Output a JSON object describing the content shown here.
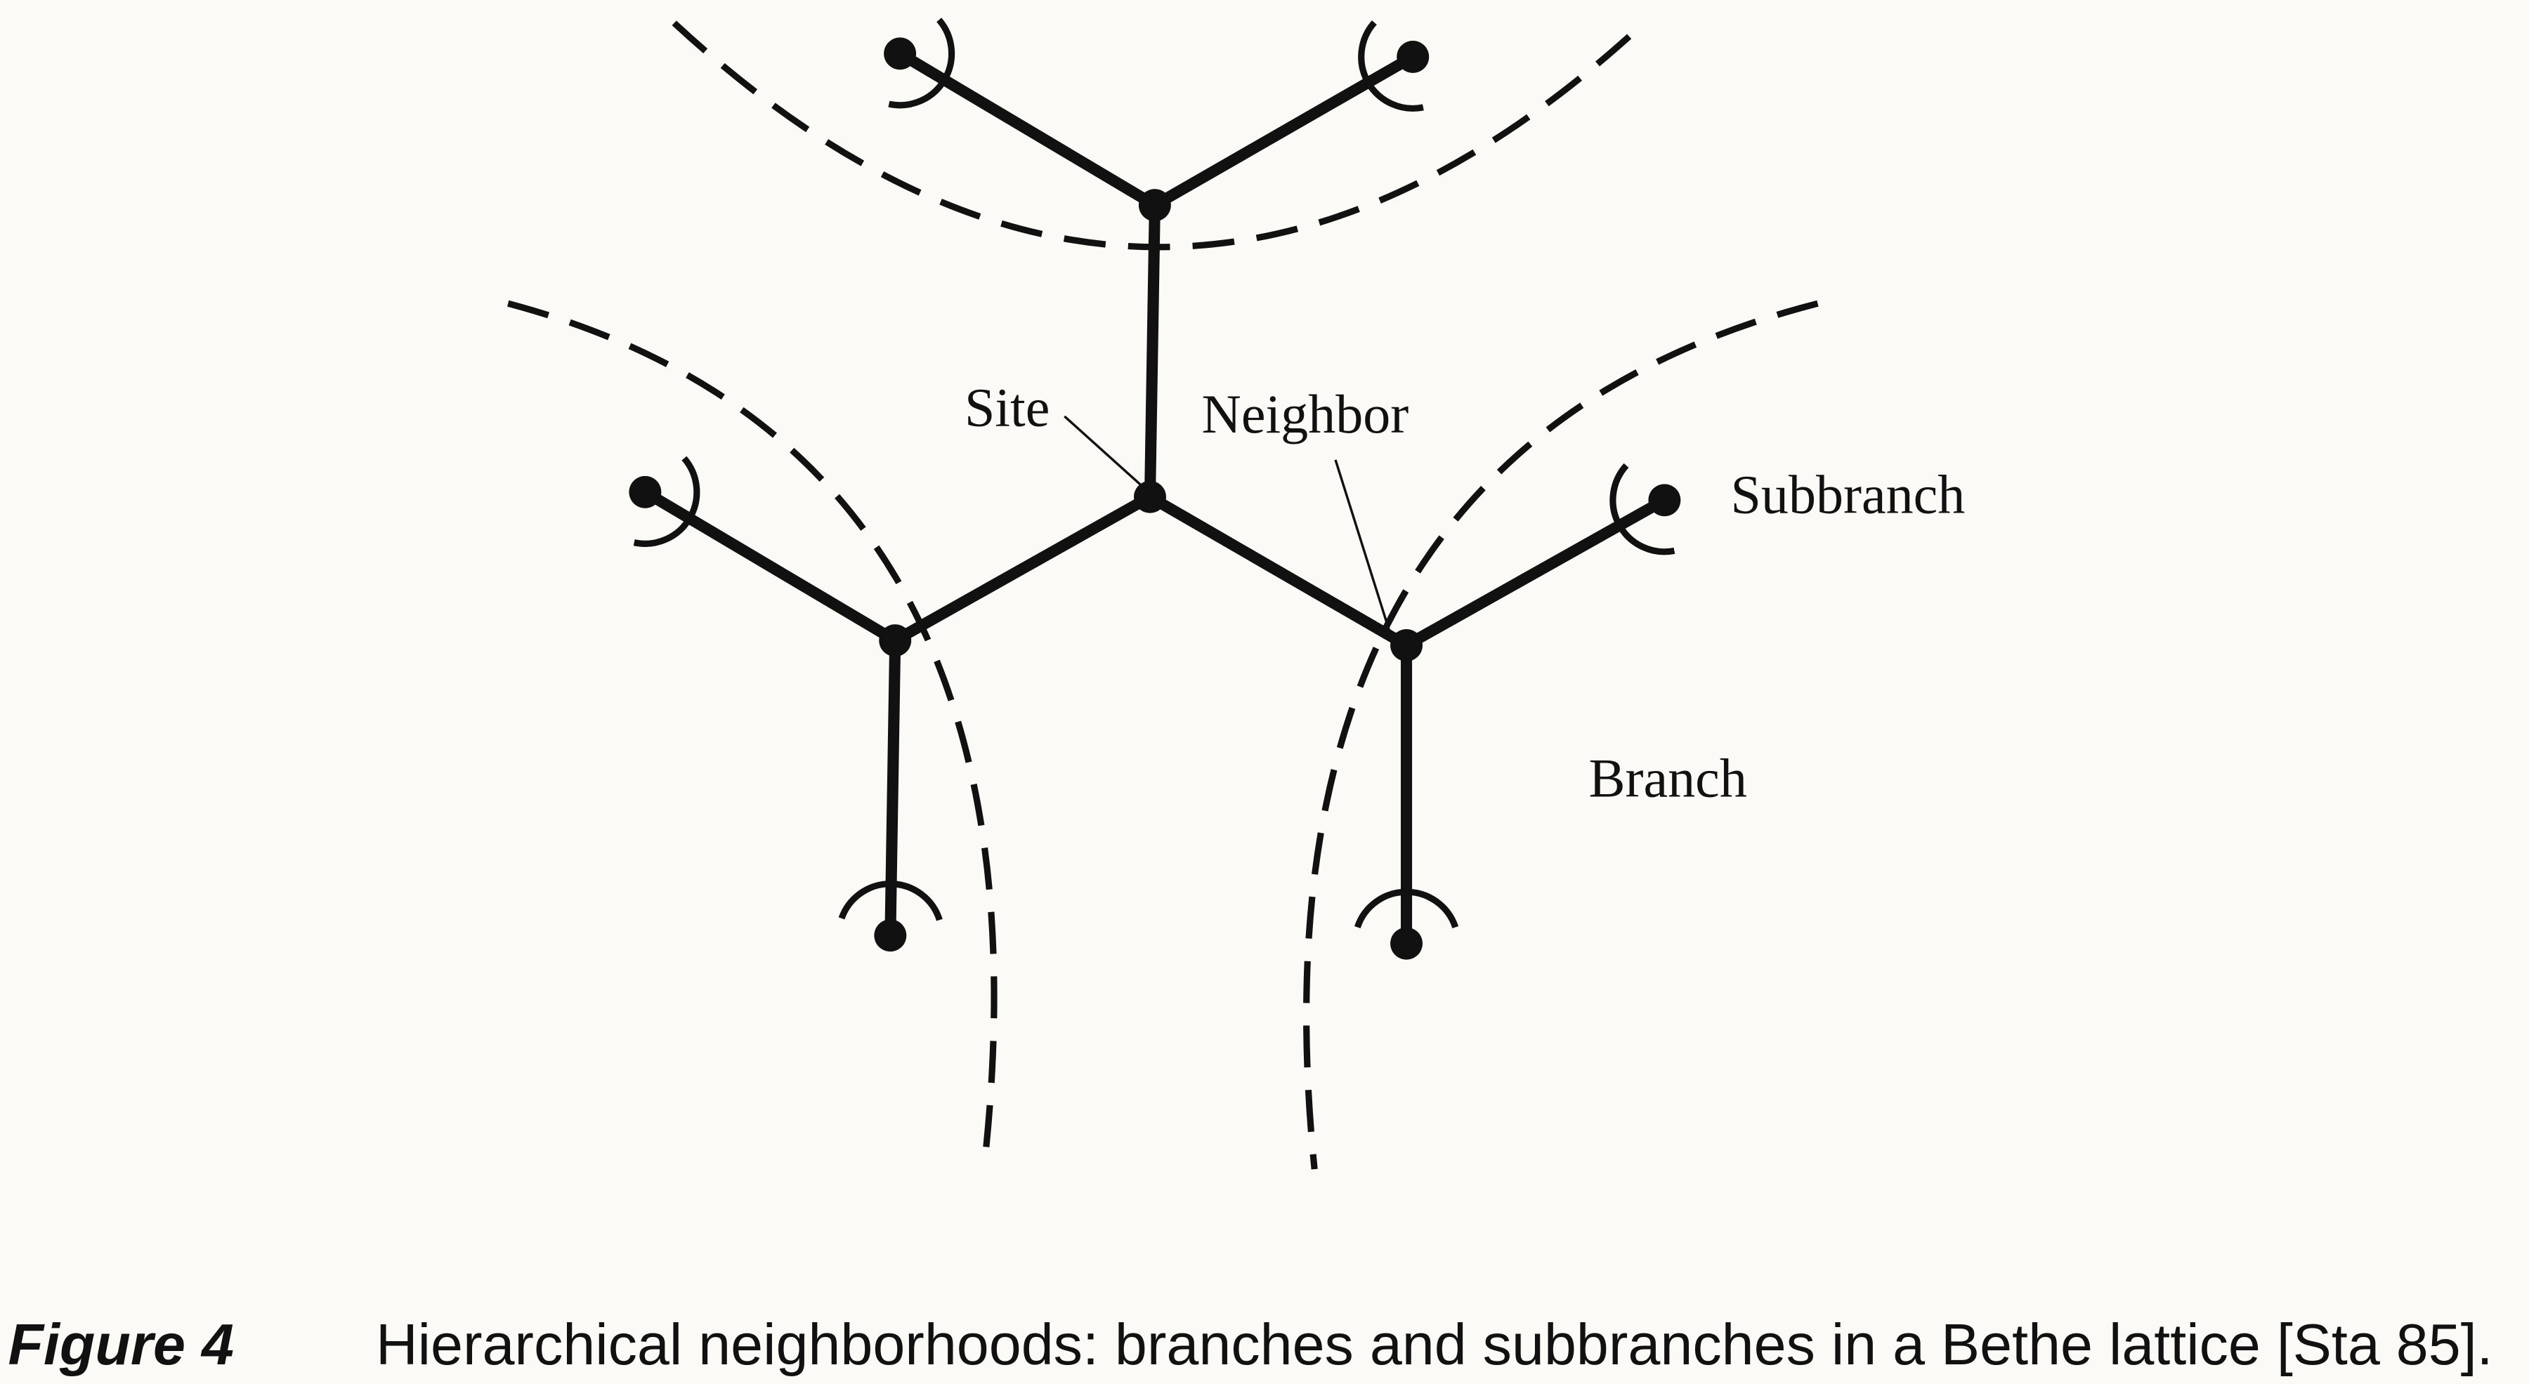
{
  "labels": {
    "site": "Site",
    "neighbor": "Neighbor",
    "subbranch": "Subbranch",
    "branch": "Branch"
  },
  "caption": {
    "label": "Figure 4",
    "text": "Hierarchical neighborhoods: branches and subbranches in a Bethe lattice [Sta 85]."
  }
}
